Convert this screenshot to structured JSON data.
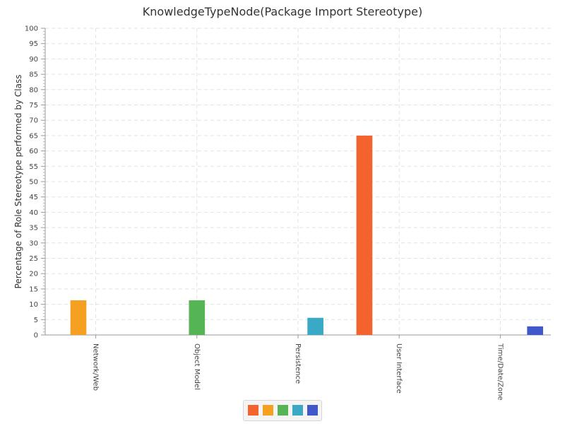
{
  "chart_data": {
    "type": "bar",
    "title": "KnowledgeTypeNode(Package Import Stereotype)",
    "ylabel": "Percentage of Role Stereotype performed by Class",
    "xlabel": "",
    "ylim": [
      0,
      100
    ],
    "y_ticks": [
      "0",
      "5",
      "10",
      "15",
      "20",
      "25",
      "30",
      "35",
      "40",
      "45",
      "50",
      "55",
      "60",
      "65",
      "70",
      "75",
      "80",
      "85",
      "90",
      "95",
      "100"
    ],
    "categories": [
      "Network/Web",
      "Object Model",
      "Persistence",
      "User Interface",
      "Time/Date/Zone"
    ],
    "series": [
      {
        "color": "#f4622e",
        "values": [
          0,
          0,
          0,
          65,
          0
        ]
      },
      {
        "color": "#f5a020",
        "values": [
          11.3,
          0,
          0,
          0,
          0
        ]
      },
      {
        "color": "#55b554",
        "values": [
          0,
          11.3,
          0,
          0,
          0
        ]
      },
      {
        "color": "#3aa9c5",
        "values": [
          0,
          0,
          5.6,
          0,
          0
        ]
      },
      {
        "color": "#4058c9",
        "values": [
          0,
          0,
          0,
          0,
          2.8
        ]
      }
    ],
    "grid": true,
    "legend_position": "bottom"
  }
}
